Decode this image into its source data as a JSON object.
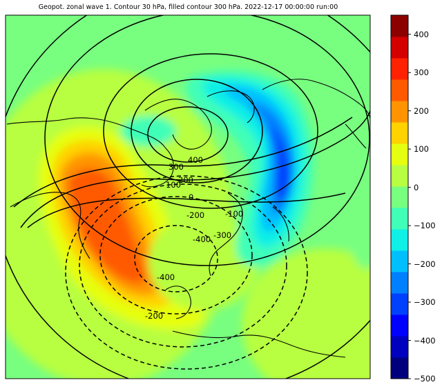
{
  "title": "Geopot. zonal wave 1. Contour 30 hPa, filled contour 300 hPa. 2022-12-17 00:00:00 run:00",
  "colorbar": {
    "ticks": [
      "400",
      "300",
      "200",
      "100",
      "0",
      "−100",
      "−200",
      "−300",
      "−400",
      "−500"
    ],
    "range": [
      -500,
      450
    ],
    "colors": [
      "#00007f",
      "#0000bf",
      "#0000ff",
      "#0040ff",
      "#0080ff",
      "#00bfff",
      "#10f0e6",
      "#40ffb7",
      "#78ff80",
      "#b7ff40",
      "#e6ff10",
      "#ffd200",
      "#ff9400",
      "#ff5a00",
      "#ff2200",
      "#d40000",
      "#8c0000"
    ]
  },
  "contour_labels": [
    "400",
    "300",
    "200",
    "100",
    "0",
    "-100",
    "-200",
    "-300",
    "-400",
    "-400",
    "-200"
  ]
}
